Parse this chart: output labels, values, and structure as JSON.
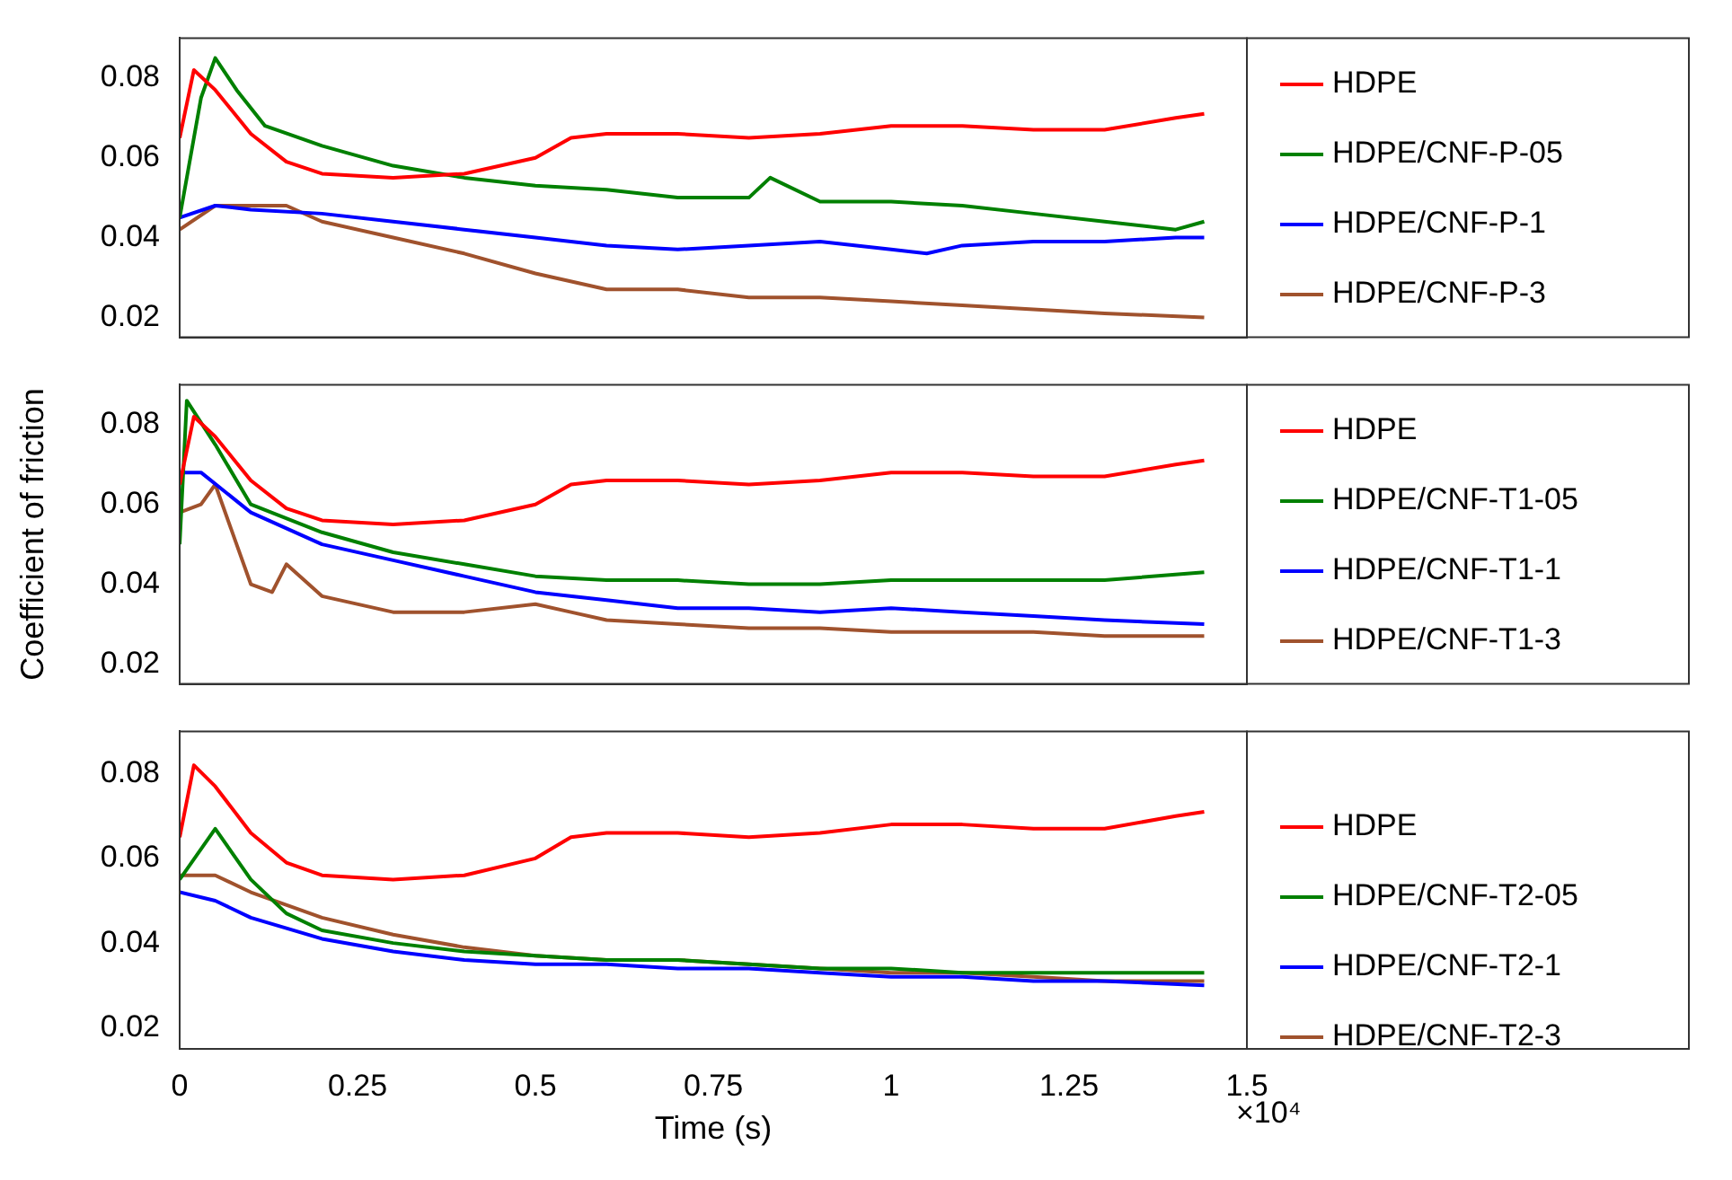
{
  "chart_data": [
    {
      "type": "line",
      "xlim": [
        0,
        1.5
      ],
      "xticks": [
        0,
        0.25,
        0.5,
        0.75,
        1,
        1.25,
        1.5
      ],
      "ylim": [
        0.015,
        0.09
      ],
      "yticks": [
        0.02,
        0.04,
        0.06,
        0.08
      ],
      "tick_labels": "y",
      "legend": "right",
      "marker": "none",
      "line_style": "solid",
      "series": [
        {
          "name": "HDPE",
          "color": "#ff0000",
          "x": [
            0,
            0.02,
            0.05,
            0.1,
            0.15,
            0.2,
            0.3,
            0.4,
            0.5,
            0.55,
            0.6,
            0.7,
            0.8,
            0.9,
            1.0,
            1.1,
            1.2,
            1.3,
            1.4,
            1.44
          ],
          "values": [
            0.065,
            0.082,
            0.077,
            0.066,
            0.059,
            0.056,
            0.055,
            0.056,
            0.06,
            0.065,
            0.066,
            0.066,
            0.065,
            0.066,
            0.068,
            0.068,
            0.067,
            0.067,
            0.07,
            0.071
          ]
        },
        {
          "name": "HDPE/CNF-P-05",
          "color": "#008000",
          "x": [
            0,
            0.03,
            0.05,
            0.08,
            0.12,
            0.2,
            0.3,
            0.4,
            0.5,
            0.6,
            0.7,
            0.8,
            0.83,
            0.9,
            1.0,
            1.1,
            1.2,
            1.3,
            1.4,
            1.44
          ],
          "values": [
            0.045,
            0.075,
            0.085,
            0.077,
            0.068,
            0.063,
            0.058,
            0.055,
            0.053,
            0.052,
            0.05,
            0.05,
            0.055,
            0.049,
            0.049,
            0.048,
            0.046,
            0.044,
            0.042,
            0.044
          ]
        },
        {
          "name": "HDPE/CNF-P-1",
          "color": "#0000ff",
          "x": [
            0,
            0.05,
            0.1,
            0.2,
            0.3,
            0.4,
            0.5,
            0.6,
            0.7,
            0.8,
            0.9,
            1.0,
            1.05,
            1.1,
            1.2,
            1.3,
            1.4,
            1.44
          ],
          "values": [
            0.045,
            0.048,
            0.047,
            0.046,
            0.044,
            0.042,
            0.04,
            0.038,
            0.037,
            0.038,
            0.039,
            0.037,
            0.036,
            0.038,
            0.039,
            0.039,
            0.04,
            0.04
          ]
        },
        {
          "name": "HDPE/CNF-P-3",
          "color": "#a0522d",
          "x": [
            0,
            0.05,
            0.1,
            0.15,
            0.2,
            0.3,
            0.4,
            0.5,
            0.6,
            0.7,
            0.8,
            0.9,
            1.0,
            1.1,
            1.2,
            1.3,
            1.44
          ],
          "values": [
            0.042,
            0.048,
            0.048,
            0.048,
            0.044,
            0.04,
            0.036,
            0.031,
            0.027,
            0.027,
            0.025,
            0.025,
            0.024,
            0.023,
            0.022,
            0.021,
            0.02
          ]
        }
      ]
    },
    {
      "type": "line",
      "xlim": [
        0,
        1.5
      ],
      "xticks": [
        0,
        0.25,
        0.5,
        0.75,
        1,
        1.25,
        1.5
      ],
      "ylim": [
        0.015,
        0.09
      ],
      "yticks": [
        0.02,
        0.04,
        0.06,
        0.08
      ],
      "tick_labels": "y",
      "ylabel": "Coefficient of friction",
      "legend": "right",
      "marker": "none",
      "line_style": "solid",
      "series": [
        {
          "name": "HDPE",
          "color": "#ff0000",
          "x": [
            0,
            0.02,
            0.05,
            0.1,
            0.15,
            0.2,
            0.3,
            0.4,
            0.5,
            0.55,
            0.6,
            0.7,
            0.8,
            0.9,
            1.0,
            1.1,
            1.2,
            1.3,
            1.4,
            1.44
          ],
          "values": [
            0.065,
            0.082,
            0.077,
            0.066,
            0.059,
            0.056,
            0.055,
            0.056,
            0.06,
            0.065,
            0.066,
            0.066,
            0.065,
            0.066,
            0.068,
            0.068,
            0.067,
            0.067,
            0.07,
            0.071
          ]
        },
        {
          "name": "HDPE/CNF-T1-05",
          "color": "#008000",
          "x": [
            0,
            0.01,
            0.05,
            0.1,
            0.2,
            0.3,
            0.4,
            0.5,
            0.6,
            0.7,
            0.8,
            0.9,
            1.0,
            1.1,
            1.2,
            1.3,
            1.44
          ],
          "values": [
            0.05,
            0.086,
            0.075,
            0.06,
            0.053,
            0.048,
            0.045,
            0.042,
            0.041,
            0.041,
            0.04,
            0.04,
            0.041,
            0.041,
            0.041,
            0.041,
            0.043
          ]
        },
        {
          "name": "HDPE/CNF-T1-1",
          "color": "#0000ff",
          "x": [
            0,
            0.03,
            0.1,
            0.2,
            0.3,
            0.4,
            0.5,
            0.6,
            0.7,
            0.8,
            0.9,
            1.0,
            1.1,
            1.2,
            1.3,
            1.44
          ],
          "values": [
            0.068,
            0.068,
            0.058,
            0.05,
            0.046,
            0.042,
            0.038,
            0.036,
            0.034,
            0.034,
            0.033,
            0.034,
            0.033,
            0.032,
            0.031,
            0.03
          ]
        },
        {
          "name": "HDPE/CNF-T1-3",
          "color": "#a0522d",
          "x": [
            0,
            0.03,
            0.05,
            0.08,
            0.1,
            0.13,
            0.15,
            0.2,
            0.3,
            0.4,
            0.5,
            0.55,
            0.6,
            0.7,
            0.8,
            0.9,
            1.0,
            1.1,
            1.2,
            1.3,
            1.44
          ],
          "values": [
            0.058,
            0.06,
            0.065,
            0.05,
            0.04,
            0.038,
            0.045,
            0.037,
            0.033,
            0.033,
            0.035,
            0.033,
            0.031,
            0.03,
            0.029,
            0.029,
            0.028,
            0.028,
            0.028,
            0.027,
            0.027
          ]
        }
      ]
    },
    {
      "type": "line",
      "xlim": [
        0,
        1.5
      ],
      "xticks": [
        0,
        0.25,
        0.5,
        0.75,
        1,
        1.25,
        1.5
      ],
      "ylim": [
        0.015,
        0.09
      ],
      "yticks": [
        0.02,
        0.04,
        0.06,
        0.08
      ],
      "xlabel": "Time (s)",
      "annotations": [
        "×10⁴"
      ],
      "legend": "right",
      "marker": "none",
      "line_style": "solid",
      "series": [
        {
          "name": "HDPE",
          "color": "#ff0000",
          "x": [
            0,
            0.02,
            0.05,
            0.1,
            0.15,
            0.2,
            0.3,
            0.4,
            0.5,
            0.55,
            0.6,
            0.7,
            0.8,
            0.9,
            1.0,
            1.1,
            1.2,
            1.3,
            1.4,
            1.44
          ],
          "values": [
            0.065,
            0.082,
            0.077,
            0.066,
            0.059,
            0.056,
            0.055,
            0.056,
            0.06,
            0.065,
            0.066,
            0.066,
            0.065,
            0.066,
            0.068,
            0.068,
            0.067,
            0.067,
            0.07,
            0.071
          ]
        },
        {
          "name": "HDPE/CNF-T2-05",
          "color": "#008000",
          "x": [
            0,
            0.05,
            0.1,
            0.15,
            0.2,
            0.3,
            0.4,
            0.5,
            0.6,
            0.7,
            0.8,
            0.9,
            1.0,
            1.1,
            1.2,
            1.3,
            1.44
          ],
          "values": [
            0.055,
            0.067,
            0.055,
            0.047,
            0.043,
            0.04,
            0.038,
            0.037,
            0.036,
            0.036,
            0.035,
            0.034,
            0.034,
            0.033,
            0.033,
            0.033,
            0.033
          ]
        },
        {
          "name": "HDPE/CNF-T2-1",
          "color": "#0000ff",
          "x": [
            0,
            0.05,
            0.1,
            0.2,
            0.3,
            0.4,
            0.5,
            0.6,
            0.7,
            0.8,
            0.9,
            1.0,
            1.1,
            1.2,
            1.3,
            1.44
          ],
          "values": [
            0.052,
            0.05,
            0.046,
            0.041,
            0.038,
            0.036,
            0.035,
            0.035,
            0.034,
            0.034,
            0.033,
            0.032,
            0.032,
            0.031,
            0.031,
            0.03
          ]
        },
        {
          "name": "HDPE/CNF-T2-3",
          "color": "#a0522d",
          "x": [
            0,
            0.05,
            0.1,
            0.2,
            0.3,
            0.4,
            0.5,
            0.6,
            0.7,
            0.8,
            0.9,
            1.0,
            1.1,
            1.2,
            1.3,
            1.44
          ],
          "values": [
            0.056,
            0.056,
            0.052,
            0.046,
            0.042,
            0.039,
            0.037,
            0.036,
            0.036,
            0.035,
            0.034,
            0.033,
            0.033,
            0.032,
            0.031,
            0.031
          ]
        }
      ]
    }
  ]
}
